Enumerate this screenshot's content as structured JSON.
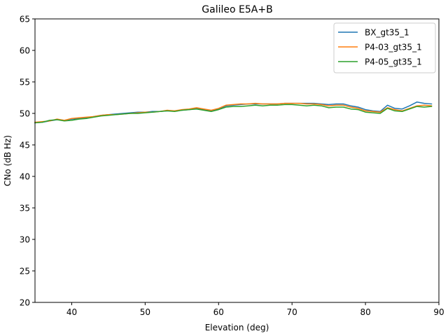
{
  "chart_data": {
    "type": "line",
    "title": "Galileo E5A+B",
    "xlabel": "Elevation (deg)",
    "ylabel": "CNo (dB Hz)",
    "xlim": [
      35,
      90
    ],
    "ylim": [
      20,
      65
    ],
    "xticks": [
      40,
      50,
      60,
      70,
      80,
      90
    ],
    "yticks": [
      20,
      25,
      30,
      35,
      40,
      45,
      50,
      55,
      60,
      65
    ],
    "grid": false,
    "legend_position": "top-right",
    "x": [
      35,
      36,
      37,
      38,
      39,
      40,
      41,
      42,
      43,
      44,
      45,
      46,
      47,
      48,
      49,
      50,
      51,
      52,
      53,
      54,
      55,
      56,
      57,
      58,
      59,
      60,
      61,
      62,
      63,
      64,
      65,
      66,
      67,
      68,
      69,
      70,
      71,
      72,
      73,
      74,
      75,
      76,
      77,
      78,
      79,
      80,
      81,
      82,
      83,
      84,
      85,
      86,
      87,
      88,
      89
    ],
    "series": [
      {
        "name": "BX_gt35_1",
        "color": "#1f77b4",
        "values": [
          48.5,
          48.6,
          48.8,
          49.0,
          48.9,
          49.1,
          49.2,
          49.3,
          49.5,
          49.7,
          49.8,
          49.9,
          50.0,
          50.1,
          50.2,
          50.2,
          50.3,
          50.3,
          50.4,
          50.4,
          50.5,
          50.6,
          50.8,
          50.6,
          50.4,
          50.7,
          51.2,
          51.3,
          51.4,
          51.5,
          51.5,
          51.5,
          51.5,
          51.5,
          51.6,
          51.6,
          51.6,
          51.6,
          51.6,
          51.5,
          51.4,
          51.5,
          51.5,
          51.2,
          51.0,
          50.6,
          50.4,
          50.3,
          51.3,
          50.8,
          50.7,
          51.2,
          51.8,
          51.6,
          51.5
        ]
      },
      {
        "name": "P4-03_gt35_1",
        "color": "#ff7f0e",
        "values": [
          48.6,
          48.7,
          48.8,
          49.1,
          48.9,
          49.2,
          49.3,
          49.4,
          49.5,
          49.7,
          49.8,
          49.8,
          49.9,
          50.0,
          50.1,
          50.2,
          50.2,
          50.3,
          50.5,
          50.4,
          50.6,
          50.7,
          50.9,
          50.7,
          50.5,
          50.8,
          51.3,
          51.4,
          51.5,
          51.5,
          51.6,
          51.5,
          51.5,
          51.5,
          51.6,
          51.6,
          51.6,
          51.5,
          51.5,
          51.4,
          51.2,
          51.3,
          51.3,
          51.0,
          50.8,
          50.4,
          50.3,
          50.2,
          50.9,
          50.6,
          50.4,
          50.8,
          51.2,
          51.3,
          51.2
        ]
      },
      {
        "name": "P4-05_gt35_1",
        "color": "#2ca02c",
        "values": [
          48.5,
          48.6,
          48.9,
          49.0,
          48.8,
          48.9,
          49.1,
          49.2,
          49.4,
          49.6,
          49.7,
          49.8,
          49.9,
          50.0,
          50.0,
          50.1,
          50.2,
          50.3,
          50.4,
          50.3,
          50.5,
          50.6,
          50.7,
          50.5,
          50.3,
          50.6,
          51.0,
          51.1,
          51.1,
          51.2,
          51.3,
          51.2,
          51.3,
          51.3,
          51.4,
          51.4,
          51.3,
          51.2,
          51.3,
          51.2,
          50.9,
          51.0,
          51.0,
          50.7,
          50.6,
          50.2,
          50.1,
          50.0,
          50.8,
          50.4,
          50.3,
          50.7,
          51.1,
          51.0,
          51.1
        ]
      }
    ]
  }
}
